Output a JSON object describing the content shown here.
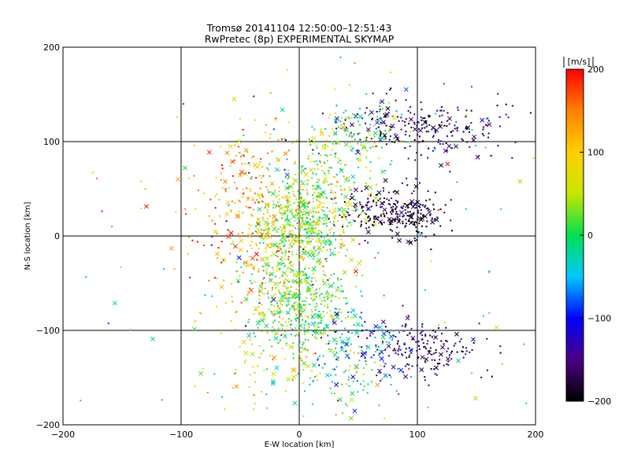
{
  "chart_data": {
    "type": "scatter",
    "title": "Tromsø 20141104 12:50:00–12:51:43",
    "subtitle": "RwPretec (8p) EXPERIMENTAL SKYMAP",
    "xlabel": "E-W location [km]",
    "ylabel": "N-S location [km]",
    "xlim": [
      -200,
      200
    ],
    "ylim": [
      -200,
      200
    ],
    "x_ticks": [
      "−200",
      "−100",
      "0",
      "100",
      "200"
    ],
    "y_ticks": [
      "−200",
      "−100",
      "0",
      "100",
      "200"
    ],
    "grid": true,
    "markers": [
      "dot",
      "x"
    ],
    "colorbar": {
      "unit_label": "[m/s]",
      "range": [
        -200,
        200
      ],
      "ticks": [
        "−200",
        "−100",
        "0",
        "100",
        "200"
      ],
      "colormap": [
        "#000000",
        "#4b0082",
        "#0000ff",
        "#00c8ff",
        "#00e050",
        "#c8e600",
        "#ffd000",
        "#ff8000",
        "#ff0000"
      ]
    },
    "clusters": [
      {
        "x": 5,
        "y": 15,
        "sx": 22,
        "sy": 22,
        "v": 40,
        "vs": 45,
        "n": 420
      },
      {
        "x": -5,
        "y": -55,
        "sx": 18,
        "sy": 28,
        "v": 35,
        "vs": 45,
        "n": 380
      },
      {
        "x": 15,
        "y": -85,
        "sx": 22,
        "sy": 25,
        "v": 5,
        "vs": 40,
        "n": 160
      },
      {
        "x": -35,
        "y": -10,
        "sx": 30,
        "sy": 40,
        "v": 120,
        "vs": 50,
        "n": 200
      },
      {
        "x": -40,
        "y": 70,
        "sx": 20,
        "sy": 25,
        "v": 130,
        "vs": 40,
        "n": 90
      },
      {
        "x": 80,
        "y": 25,
        "sx": 22,
        "sy": 12,
        "v": -180,
        "vs": 30,
        "n": 260
      },
      {
        "x": 100,
        "y": 115,
        "sx": 35,
        "sy": 15,
        "v": -160,
        "vs": 40,
        "n": 240
      },
      {
        "x": 45,
        "y": 110,
        "sx": 20,
        "sy": 18,
        "v": 20,
        "vs": 50,
        "n": 130
      },
      {
        "x": 110,
        "y": -120,
        "sx": 25,
        "sy": 15,
        "v": -170,
        "vs": 35,
        "n": 150
      },
      {
        "x": 60,
        "y": -110,
        "sx": 22,
        "sy": 20,
        "v": -90,
        "vs": 50,
        "n": 110
      },
      {
        "x": 40,
        "y": -150,
        "sx": 25,
        "sy": 20,
        "v": 0,
        "vs": 50,
        "n": 90
      },
      {
        "x": 20,
        "y": 60,
        "sx": 25,
        "sy": 22,
        "v": 30,
        "vs": 50,
        "n": 170
      },
      {
        "x": -20,
        "y": -130,
        "sx": 25,
        "sy": 30,
        "v": 60,
        "vs": 60,
        "n": 90
      },
      {
        "x": 0,
        "y": 0,
        "sx": 110,
        "sy": 110,
        "v": 40,
        "vs": 110,
        "n": 160
      }
    ]
  }
}
